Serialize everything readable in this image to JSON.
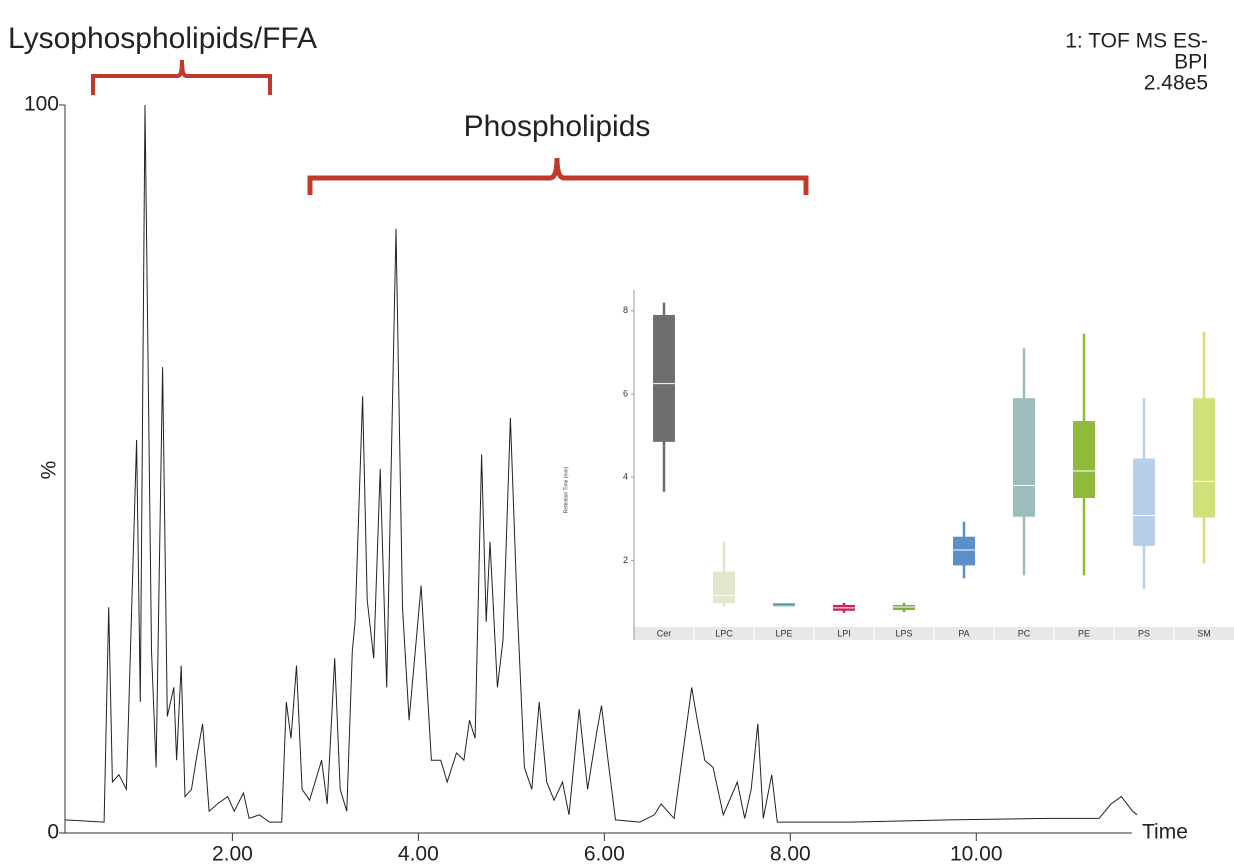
{
  "chart_data": [
    {
      "type": "line",
      "annotations": [
        "Lysophospholipids/FFA",
        "Phospholipids"
      ],
      "info": [
        "1: TOF MS ES-",
        "BPI",
        "2.48e5"
      ],
      "xlabel": "Time",
      "ylabel": "%",
      "color": "#222222",
      "xlim": [
        0.2,
        11.75
      ],
      "ylim": [
        0,
        100
      ],
      "xticks": [
        {
          "value": 2,
          "label": "2.00"
        },
        {
          "value": 4,
          "label": "4.00"
        },
        {
          "value": 6,
          "label": "6.00"
        },
        {
          "value": 8,
          "label": "8.00"
        },
        {
          "value": 10,
          "label": "10.00"
        }
      ],
      "yticks": [
        0,
        100
      ],
      "x": [
        0.2,
        0.62,
        0.67,
        0.71,
        0.78,
        0.86,
        0.97,
        1.01,
        1.06,
        1.13,
        1.18,
        1.25,
        1.3,
        1.37,
        1.4,
        1.45,
        1.49,
        1.56,
        1.61,
        1.68,
        1.75,
        1.84,
        1.95,
        2.02,
        2.12,
        2.18,
        2.29,
        2.4,
        2.53,
        2.58,
        2.63,
        2.69,
        2.75,
        2.83,
        2.96,
        3.02,
        3.1,
        3.16,
        3.23,
        3.29,
        3.32,
        3.4,
        3.45,
        3.52,
        3.59,
        3.66,
        3.76,
        3.83,
        3.9,
        4.03,
        4.14,
        4.24,
        4.31,
        4.41,
        4.49,
        4.55,
        4.61,
        4.68,
        4.73,
        4.77,
        4.85,
        4.91,
        4.99,
        5.06,
        5.14,
        5.22,
        5.3,
        5.38,
        5.46,
        5.55,
        5.62,
        5.73,
        5.82,
        5.92,
        5.97,
        6.04,
        6.12,
        6.38,
        6.54,
        6.61,
        6.75,
        6.94,
        7.0,
        7.08,
        7.17,
        7.28,
        7.43,
        7.51,
        7.58,
        7.65,
        7.71,
        7.8,
        7.86,
        8.63,
        9.71,
        10.78,
        11.32,
        11.45,
        11.56,
        11.68,
        11.73
      ],
      "values": [
        1.8,
        1.5,
        31,
        7,
        8,
        6,
        54,
        18,
        100,
        25,
        9,
        64,
        16,
        20,
        10,
        23,
        5,
        6,
        10,
        15,
        3,
        4,
        5,
        3,
        5.5,
        2,
        2.5,
        1.5,
        1.5,
        18,
        13,
        23,
        6,
        4.5,
        10,
        4,
        24,
        6,
        3,
        25,
        29,
        60,
        32,
        24,
        50,
        20,
        83,
        31,
        15.5,
        34,
        10,
        10,
        7,
        11,
        10,
        15.5,
        13,
        52,
        29,
        40,
        20,
        26.5,
        57,
        32,
        9,
        6,
        18,
        7,
        4.5,
        7,
        2.5,
        17,
        6,
        14,
        17.5,
        10,
        1.8,
        1.5,
        2.5,
        4,
        2,
        20,
        15.5,
        10,
        9,
        2.5,
        7,
        2,
        6,
        15,
        2,
        8,
        1.5,
        1.5,
        1.8,
        2,
        2,
        4,
        5,
        3,
        2.5
      ]
    },
    {
      "type": "box",
      "ylabel": "Retention Time (min)",
      "ylim": [
        0.4,
        8.5
      ],
      "yticks": [
        2,
        4,
        6,
        8
      ],
      "categories": [
        "Cer",
        "LPC",
        "LPE",
        "LPI",
        "LPS",
        "PA",
        "PC",
        "PE",
        "PS",
        "SM"
      ],
      "boxes": [
        {
          "low": 3.65,
          "q1": 4.85,
          "median": 6.25,
          "q3": 7.9,
          "high": 8.2,
          "color": "#6f6f6f"
        },
        {
          "low": 0.9,
          "q1": 0.97,
          "median": 1.15,
          "q3": 1.73,
          "high": 2.45,
          "color": "#e3e6cc"
        },
        {
          "low": 0.88,
          "q1": 0.88,
          "median": 0.9,
          "q3": 0.97,
          "high": 0.97,
          "color": "#5d9aa5"
        },
        {
          "low": 0.74,
          "q1": 0.79,
          "median": 0.86,
          "q3": 0.93,
          "high": 0.98,
          "color": "#c8245c"
        },
        {
          "low": 0.76,
          "q1": 0.81,
          "median": 0.88,
          "q3": 0.93,
          "high": 0.98,
          "color": "#7fae3a"
        },
        {
          "low": 1.57,
          "q1": 1.88,
          "median": 2.25,
          "q3": 2.57,
          "high": 2.93,
          "color": "#5b8fc9"
        },
        {
          "low": 1.64,
          "q1": 3.05,
          "median": 3.8,
          "q3": 5.9,
          "high": 7.1,
          "color": "#9dbcbc"
        },
        {
          "low": 1.64,
          "q1": 3.5,
          "median": 4.15,
          "q3": 5.35,
          "high": 7.45,
          "color": "#8fba3c"
        },
        {
          "low": 1.32,
          "q1": 2.35,
          "median": 3.08,
          "q3": 4.45,
          "high": 5.9,
          "color": "#b7d0e8"
        },
        {
          "low": 1.93,
          "q1": 3.03,
          "median": 3.9,
          "q3": 5.9,
          "high": 7.5,
          "color": "#d2e07a"
        }
      ]
    }
  ]
}
